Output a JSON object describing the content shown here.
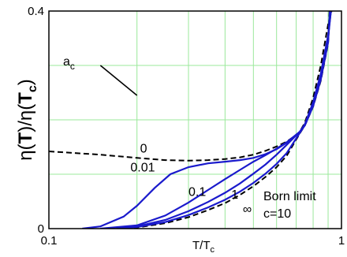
{
  "chart_data": {
    "type": "line",
    "title": "",
    "xlabel": {
      "base": "T/T",
      "sub": "c"
    },
    "ylabel": {
      "a": "η(",
      "b": "T",
      "c": ")/η(",
      "d": "T",
      "sub": "c",
      "e": ")"
    },
    "x_scale": "log",
    "xlim": [
      0.1,
      1
    ],
    "ylim": [
      0,
      0.4
    ],
    "x_ticks": [
      {
        "value": 0.1,
        "label": "0.1"
      },
      {
        "value": 1,
        "label": "1"
      }
    ],
    "y_ticks": [
      {
        "value": 0,
        "label": "0"
      },
      {
        "value": 0.4,
        "label": "0.4"
      }
    ],
    "grid_x": [
      0.2,
      0.3,
      0.4,
      0.5,
      0.6,
      0.7,
      0.8,
      0.9
    ],
    "grid_y": [
      0.1,
      0.2,
      0.3
    ],
    "grid": true,
    "colors": {
      "solid": "#1a1acc",
      "dashed": "#000000",
      "grid": "#9be89b"
    },
    "legend_title": {
      "base": "a",
      "sub": "c"
    },
    "series": [
      {
        "name": "0",
        "style": "dashed",
        "x": [
          0.1,
          0.15,
          0.2,
          0.25,
          0.3,
          0.35,
          0.4,
          0.45,
          0.5,
          0.55,
          0.6,
          0.65,
          0.7,
          0.72,
          0.75,
          0.8,
          0.85,
          0.9,
          0.93
        ],
        "y": [
          0.142,
          0.136,
          0.13,
          0.126,
          0.125,
          0.126,
          0.128,
          0.131,
          0.136,
          0.143,
          0.151,
          0.16,
          0.172,
          0.178,
          0.195,
          0.24,
          0.3,
          0.375,
          0.405
        ]
      },
      {
        "name": "0.01",
        "style": "solid",
        "x": [
          0.13,
          0.15,
          0.18,
          0.2,
          0.23,
          0.26,
          0.3,
          0.35,
          0.4,
          0.45,
          0.5,
          0.55,
          0.6,
          0.65,
          0.72,
          0.75,
          0.8,
          0.85,
          0.9,
          0.92
        ],
        "y": [
          0,
          0.004,
          0.022,
          0.042,
          0.075,
          0.1,
          0.113,
          0.12,
          0.123,
          0.126,
          0.13,
          0.137,
          0.146,
          0.158,
          0.178,
          0.192,
          0.232,
          0.285,
          0.355,
          0.4
        ]
      },
      {
        "name": "0.1",
        "style": "solid",
        "x": [
          0.15,
          0.2,
          0.25,
          0.3,
          0.35,
          0.4,
          0.45,
          0.5,
          0.55,
          0.6,
          0.65,
          0.72,
          0.75,
          0.8,
          0.85,
          0.9,
          0.92
        ],
        "y": [
          0,
          0.006,
          0.024,
          0.048,
          0.071,
          0.091,
          0.108,
          0.123,
          0.135,
          0.147,
          0.159,
          0.178,
          0.19,
          0.228,
          0.28,
          0.35,
          0.4
        ]
      },
      {
        "name": "1",
        "style": "solid",
        "x": [
          0.17,
          0.2,
          0.25,
          0.3,
          0.35,
          0.4,
          0.45,
          0.5,
          0.55,
          0.6,
          0.65,
          0.72,
          0.75,
          0.8,
          0.85,
          0.9,
          0.915
        ],
        "y": [
          0,
          0.004,
          0.016,
          0.032,
          0.049,
          0.066,
          0.083,
          0.101,
          0.118,
          0.136,
          0.154,
          0.178,
          0.19,
          0.226,
          0.276,
          0.345,
          0.4
        ]
      },
      {
        "name": "∞",
        "style": "dashed",
        "x": [
          0.17,
          0.2,
          0.25,
          0.3,
          0.35,
          0.4,
          0.45,
          0.5,
          0.55,
          0.6,
          0.65,
          0.72,
          0.75,
          0.8,
          0.85,
          0.9,
          0.91
        ],
        "y": [
          0,
          0.002,
          0.01,
          0.021,
          0.034,
          0.047,
          0.062,
          0.078,
          0.095,
          0.113,
          0.134,
          0.175,
          0.19,
          0.224,
          0.272,
          0.34,
          0.4
        ]
      },
      {
        "name": "",
        "style": "solid",
        "x": [
          0.17,
          0.2,
          0.25,
          0.3,
          0.35,
          0.4,
          0.45,
          0.5,
          0.55,
          0.6,
          0.65,
          0.72,
          0.75,
          0.8,
          0.85,
          0.9,
          0.912
        ],
        "y": [
          0,
          0.003,
          0.012,
          0.025,
          0.039,
          0.053,
          0.068,
          0.084,
          0.101,
          0.119,
          0.139,
          0.176,
          0.19,
          0.225,
          0.274,
          0.342,
          0.4
        ]
      }
    ],
    "pointer_line": {
      "from": [
        0.15,
        0.3
      ],
      "to": [
        0.2,
        0.245
      ]
    },
    "annotations": [
      {
        "text": "0",
        "x": 0.205,
        "y": 0.14
      },
      {
        "text": "0.01",
        "x": 0.19,
        "y": 0.105
      },
      {
        "text": "0.1",
        "x": 0.3,
        "y": 0.06
      },
      {
        "text": "1",
        "x": 0.42,
        "y": 0.055
      },
      {
        "text": "∞",
        "x": 0.46,
        "y": 0.028
      }
    ],
    "notes": [
      "Born limit",
      "c=10"
    ]
  }
}
